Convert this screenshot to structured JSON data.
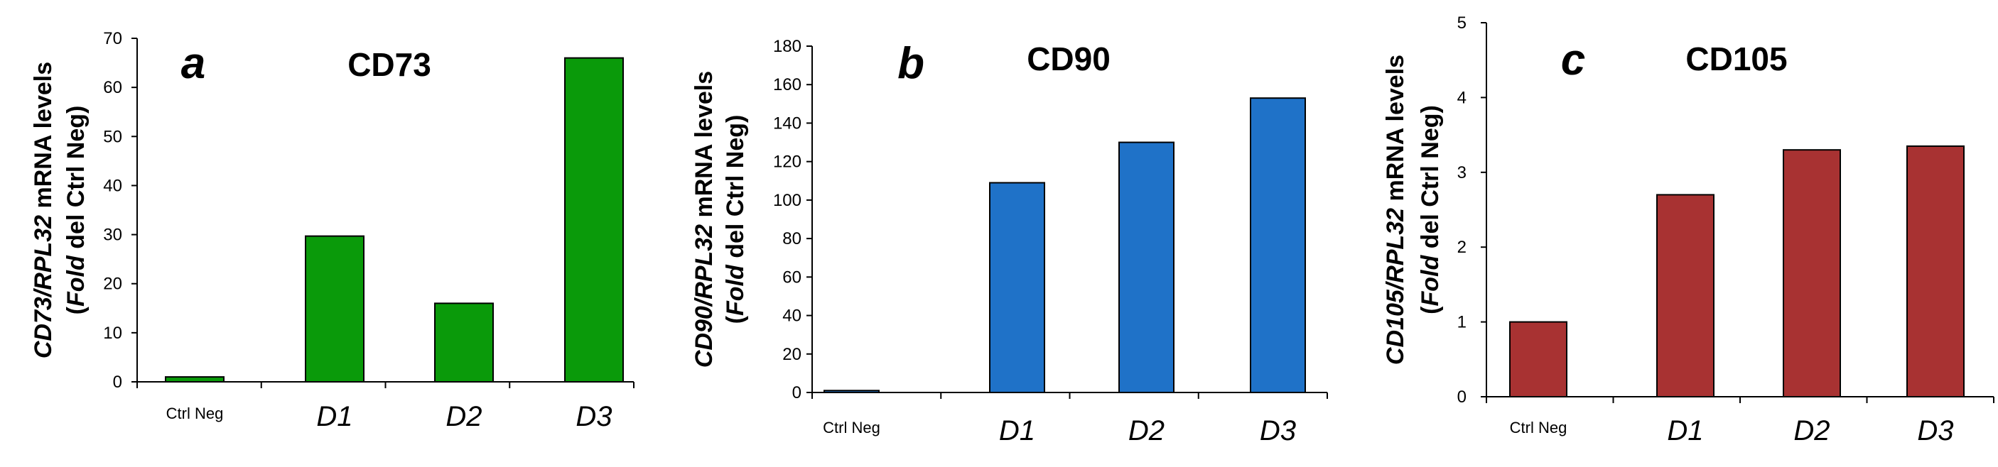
{
  "chart_data": [
    {
      "type": "bar",
      "panel_letter": "a",
      "title": "CD73",
      "ylabel_line1": {
        "gene": "CD73/RPL32",
        "rest": " mRNA levels"
      },
      "ylabel_line2": {
        "open": "(",
        "fold": "Fold",
        "rest": " del Ctrl Neg)"
      },
      "categories": [
        "Ctrl Neg",
        "D1",
        "D2",
        "D3"
      ],
      "values": [
        1,
        29.7,
        16,
        66
      ],
      "ylim": [
        0,
        70
      ],
      "yticks": [
        0,
        10,
        20,
        30,
        40,
        50,
        60,
        70
      ],
      "color": "#0a9a0a",
      "edge": "#000000"
    },
    {
      "type": "bar",
      "panel_letter": "b",
      "title": "CD90",
      "ylabel_line1": {
        "gene": "CD90/RPL32",
        "rest": " mRNA levels"
      },
      "ylabel_line2": {
        "open": "(",
        "fold": "Fold",
        "rest": " del Ctrl Neg)"
      },
      "categories": [
        "Ctrl Neg",
        "D1",
        "D2",
        "D3"
      ],
      "values": [
        1,
        109,
        130,
        153
      ],
      "ylim": [
        0,
        180
      ],
      "yticks": [
        0,
        20,
        40,
        60,
        80,
        100,
        120,
        140,
        160,
        180
      ],
      "color": "#1f72c8",
      "edge": "#000000"
    },
    {
      "type": "bar",
      "panel_letter": "c",
      "title": "CD105",
      "ylabel_line1": {
        "gene": "CD105/RPL32",
        "rest": " mRNA levels"
      },
      "ylabel_line2": {
        "open": "(",
        "fold": "Fold",
        "rest": " del Ctrl Neg)"
      },
      "categories": [
        "Ctrl Neg",
        "D1",
        "D2",
        "D3"
      ],
      "values": [
        1,
        2.7,
        3.3,
        3.35
      ],
      "ylim": [
        0,
        5
      ],
      "yticks": [
        0,
        1,
        2,
        3,
        4,
        5
      ],
      "color": "#a83232",
      "edge": "#000000"
    }
  ]
}
